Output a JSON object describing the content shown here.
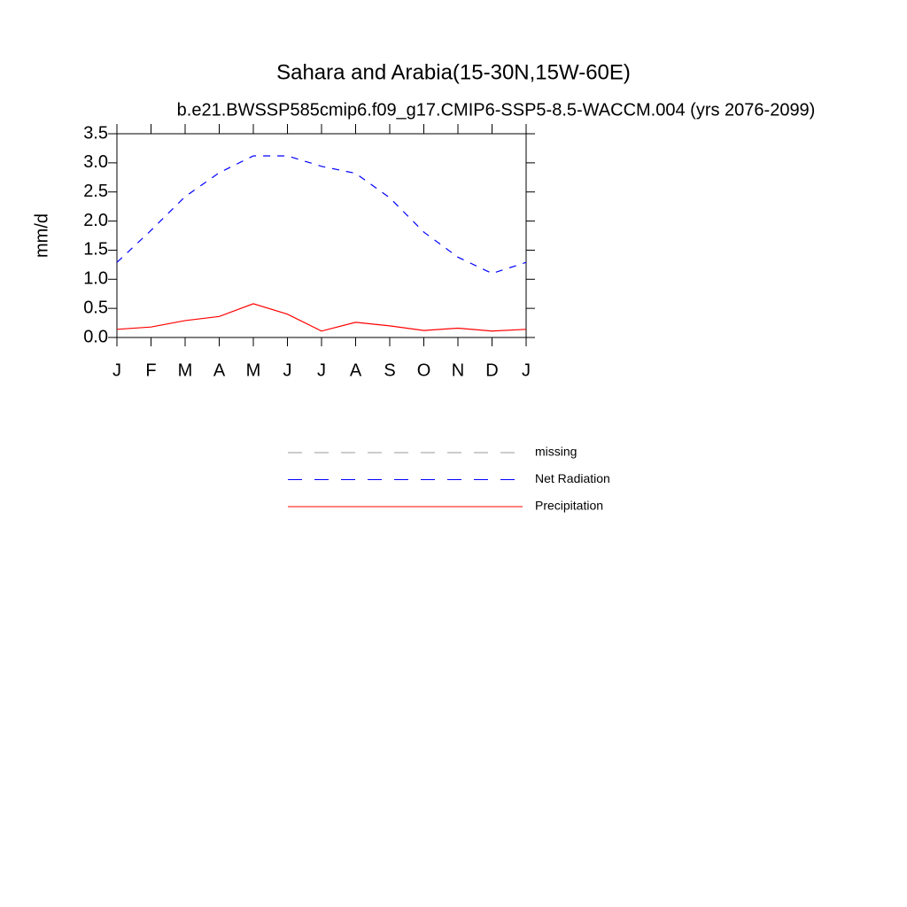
{
  "chart_data": {
    "type": "line",
    "title": "Sahara and Arabia(15-30N,15W-60E)",
    "subtitle": "b.e21.BWSSP585cmip6.f09_g17.CMIP6-SSP5-8.5-WACCM.004 (yrs 2076-2099)",
    "y_label": "mm/d",
    "categories": [
      "J",
      "F",
      "M",
      "A",
      "M",
      "J",
      "J",
      "A",
      "S",
      "O",
      "N",
      "D",
      "J"
    ],
    "series": [
      {
        "name": "missing",
        "color": "#999999",
        "dash": "dashed",
        "values": [
          null,
          null,
          null,
          null,
          null,
          null,
          null,
          null,
          null,
          null,
          null,
          null,
          null
        ]
      },
      {
        "name": "Net Radiation",
        "color": "#0000ff",
        "dash": "dashed",
        "values": [
          1.29,
          1.84,
          2.42,
          2.83,
          3.12,
          3.12,
          2.94,
          2.82,
          2.4,
          1.81,
          1.38,
          1.1,
          1.29
        ]
      },
      {
        "name": "Precipitation",
        "color": "#ff0000",
        "dash": "solid",
        "values": [
          0.14,
          0.18,
          0.29,
          0.36,
          0.58,
          0.4,
          0.11,
          0.26,
          0.2,
          0.12,
          0.16,
          0.11,
          0.14
        ]
      }
    ],
    "ylim": [
      0,
      3.5
    ],
    "yticks": [
      {
        "value": 0,
        "label": "0.0"
      },
      0.5,
      {
        "value": 1,
        "label": "1.0"
      },
      1.5,
      {
        "value": 2,
        "label": "2.0"
      },
      2.5,
      {
        "value": 3,
        "label": "3.0"
      },
      3.5
    ],
    "grid": false
  }
}
